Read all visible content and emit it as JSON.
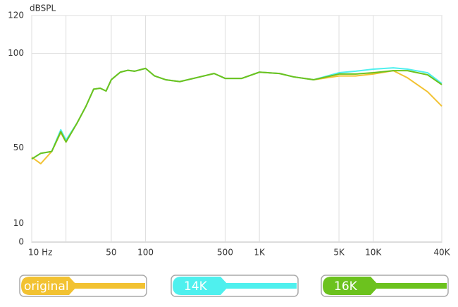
{
  "chart_data": {
    "type": "line",
    "y_label": "dBSPL",
    "log_x": true,
    "xlim": [
      10,
      40000
    ],
    "ylim": [
      0,
      120
    ],
    "xticks": [
      {
        "value": 10,
        "label": "10 Hz"
      },
      50,
      100,
      500,
      {
        "value": 1000,
        "label": "1K"
      },
      {
        "value": 5000,
        "label": "5K"
      },
      {
        "value": 10000,
        "label": "10K"
      },
      {
        "value": 40000,
        "label": "40K"
      }
    ],
    "x_gridlines": [
      10,
      20,
      50,
      100,
      500,
      1000,
      5000,
      10000,
      40000
    ],
    "yticks": [
      0,
      10,
      50,
      100,
      120
    ],
    "y_gridlines": [
      100,
      120
    ],
    "x": [
      10,
      12,
      15,
      18,
      20,
      25,
      30,
      35,
      40,
      45,
      50,
      60,
      70,
      80,
      100,
      120,
      150,
      200,
      300,
      400,
      500,
      700,
      1000,
      1500,
      2000,
      3000,
      5000,
      7000,
      10000,
      15000,
      20000,
      30000,
      40000
    ],
    "series": [
      {
        "name": "original",
        "color": "#f2c232",
        "values": [
          45,
          41.5,
          48,
          58,
          53,
          63,
          72,
          81,
          81.5,
          80,
          86,
          90,
          91,
          90.5,
          92,
          88,
          86,
          85,
          87.5,
          89.3,
          86.7,
          86.7,
          90,
          89.3,
          87.5,
          86,
          88,
          88,
          89,
          90.8,
          87,
          79.6,
          72
        ]
      },
      {
        "name": "14K",
        "color": "#4ff0ee",
        "values": [
          44,
          47,
          48,
          59.5,
          54,
          63,
          72,
          81,
          81.5,
          80,
          86,
          90,
          91,
          90.5,
          92,
          88,
          86,
          85,
          87.5,
          89.3,
          86.7,
          86.7,
          90,
          89.3,
          87.5,
          86,
          89.7,
          90.5,
          91.6,
          92.3,
          91.6,
          89.7,
          84
        ]
      },
      {
        "name": "16K",
        "color": "#6cc21e",
        "values": [
          44,
          47,
          48,
          58.5,
          53,
          63,
          72,
          81,
          81.5,
          80,
          86,
          90,
          91,
          90.5,
          92,
          88,
          86,
          85,
          87.5,
          89.3,
          86.7,
          86.7,
          90,
          89.3,
          87.5,
          86,
          89,
          89,
          89.7,
          90.8,
          90.8,
          88.6,
          83.4
        ]
      }
    ]
  }
}
